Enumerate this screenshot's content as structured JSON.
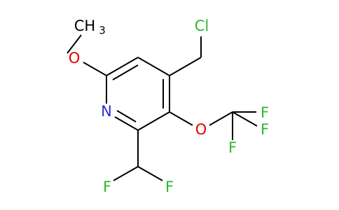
{
  "atoms": [
    {
      "label": "Cl"
    },
    {
      "label": "CH"
    },
    {
      "label": "3"
    },
    {
      "label": "O"
    },
    {
      "label": "N"
    },
    {
      "label": "O"
    },
    {
      "label": "F"
    },
    {
      "label": "F"
    },
    {
      "label": "F"
    },
    {
      "label": "F"
    },
    {
      "label": "F"
    }
  ]
}
